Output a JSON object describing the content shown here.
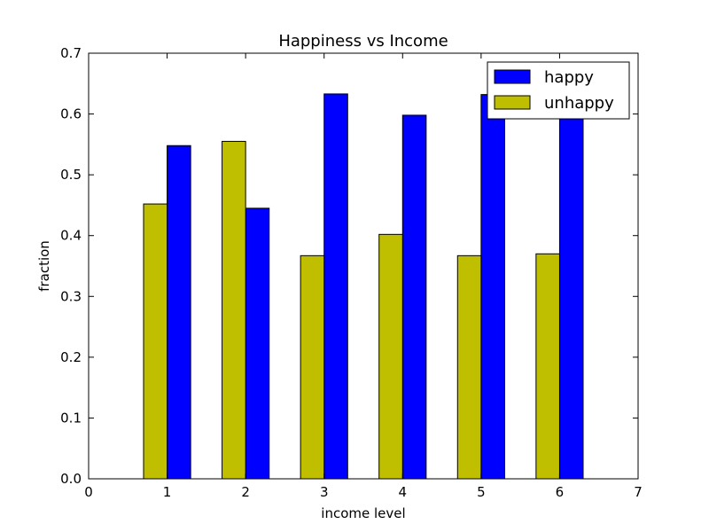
{
  "chart_data": {
    "type": "bar",
    "title": "Happiness vs Income",
    "xlabel": "income level",
    "ylabel": "fraction",
    "xlim": [
      0,
      7
    ],
    "ylim": [
      0,
      0.7
    ],
    "xticks": [
      0,
      1,
      2,
      3,
      4,
      5,
      6,
      7
    ],
    "yticks": [
      0.0,
      0.1,
      0.2,
      0.3,
      0.4,
      0.5,
      0.6,
      0.7
    ],
    "xtick_labels": [
      "0",
      "1",
      "2",
      "3",
      "4",
      "5",
      "6",
      "7"
    ],
    "ytick_labels": [
      "0.0",
      "0.1",
      "0.2",
      "0.3",
      "0.4",
      "0.5",
      "0.6",
      "0.7"
    ],
    "grid": false,
    "legend_position": "top-right",
    "x": [
      1,
      2,
      3,
      4,
      5,
      6
    ],
    "series": [
      {
        "name": "happy",
        "color": "#0000ff",
        "side": "right",
        "values": [
          0.548,
          0.445,
          0.633,
          0.598,
          0.632,
          0.63
        ]
      },
      {
        "name": "unhappy",
        "color": "#bfbf00",
        "side": "left",
        "values": [
          0.452,
          0.555,
          0.367,
          0.402,
          0.367,
          0.37
        ]
      }
    ]
  }
}
